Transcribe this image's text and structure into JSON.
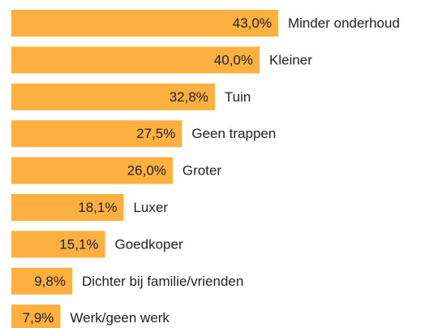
{
  "chart_data": {
    "type": "bar",
    "orientation": "horizontal",
    "color": "#fbb040",
    "categories": [
      "Minder onderhoud",
      "Kleiner",
      "Tuin",
      "Geen trappen",
      "Groter",
      "Luxer",
      "Goedkoper",
      "Dichter bij familie/vrienden",
      "Werk/geen werk"
    ],
    "values": [
      43.0,
      40.0,
      32.8,
      27.5,
      26.0,
      18.1,
      15.1,
      9.8,
      7.9
    ],
    "value_labels": [
      "43,0%",
      "40,0%",
      "32,8%",
      "27,5%",
      "26,0%",
      "18,1%",
      "15,1%",
      "9,8%",
      "7,9%"
    ]
  }
}
